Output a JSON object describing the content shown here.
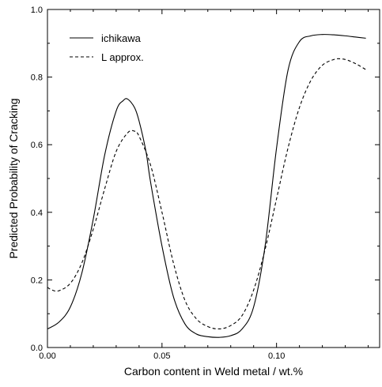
{
  "chart_data": {
    "type": "line",
    "title": "",
    "xlabel": "Carbon content in Weld metal / wt.%",
    "ylabel": "Predicted Probability of Cracking",
    "xlim": [
      0.0,
      0.145
    ],
    "ylim": [
      0.0,
      1.0
    ],
    "x_ticks": [
      0.0,
      0.05,
      0.1
    ],
    "x_tick_labels": [
      "0.00",
      "0.05",
      "0.10"
    ],
    "y_ticks": [
      0.0,
      0.2,
      0.4,
      0.6,
      0.8,
      1.0
    ],
    "y_tick_labels": [
      "0.0",
      "0.2",
      "0.4",
      "0.6",
      "0.8",
      "1.0"
    ],
    "grid": false,
    "legend_position": "top-left",
    "series": [
      {
        "name": "ichikawa",
        "style": "solid",
        "color": "#000000",
        "x": [
          0.0,
          0.005,
          0.01,
          0.015,
          0.02,
          0.025,
          0.03,
          0.033,
          0.035,
          0.038,
          0.04,
          0.043,
          0.045,
          0.05,
          0.055,
          0.06,
          0.065,
          0.07,
          0.075,
          0.08,
          0.085,
          0.09,
          0.095,
          0.1,
          0.105,
          0.11,
          0.115,
          0.12,
          0.125,
          0.13,
          0.135,
          0.139
        ],
        "y": [
          0.055,
          0.075,
          0.12,
          0.22,
          0.38,
          0.57,
          0.7,
          0.73,
          0.735,
          0.71,
          0.67,
          0.58,
          0.49,
          0.3,
          0.15,
          0.07,
          0.04,
          0.032,
          0.03,
          0.035,
          0.055,
          0.12,
          0.3,
          0.59,
          0.82,
          0.905,
          0.922,
          0.926,
          0.925,
          0.922,
          0.918,
          0.915
        ]
      },
      {
        "name": "L approx.",
        "style": "dashed",
        "color": "#000000",
        "x": [
          0.0,
          0.002,
          0.005,
          0.01,
          0.015,
          0.02,
          0.025,
          0.03,
          0.035,
          0.038,
          0.04,
          0.045,
          0.05,
          0.055,
          0.06,
          0.065,
          0.07,
          0.075,
          0.08,
          0.085,
          0.09,
          0.095,
          0.1,
          0.105,
          0.11,
          0.115,
          0.12,
          0.125,
          0.128,
          0.131,
          0.135,
          0.139
        ],
        "y": [
          0.178,
          0.17,
          0.168,
          0.19,
          0.25,
          0.35,
          0.47,
          0.58,
          0.635,
          0.64,
          0.625,
          0.54,
          0.4,
          0.25,
          0.14,
          0.085,
          0.062,
          0.055,
          0.065,
          0.095,
          0.17,
          0.29,
          0.44,
          0.59,
          0.71,
          0.79,
          0.835,
          0.852,
          0.854,
          0.85,
          0.838,
          0.822
        ]
      }
    ]
  }
}
